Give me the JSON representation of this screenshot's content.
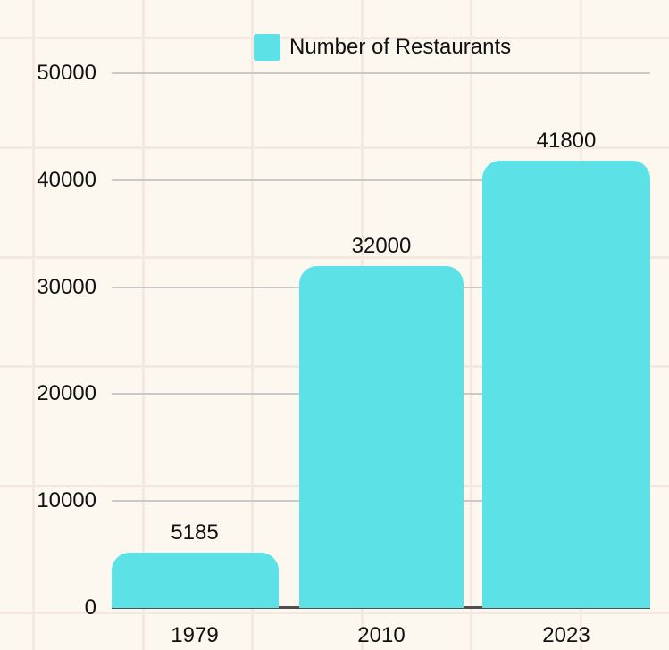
{
  "chart_data": {
    "type": "bar",
    "legend": [
      "Number of Restaurants"
    ],
    "legend_position": "top",
    "categories": [
      "1979",
      "2010",
      "2023"
    ],
    "values": [
      5185,
      32000,
      41800
    ],
    "value_labels": [
      "5185",
      "32000",
      "41800"
    ],
    "xlabel": "",
    "ylabel": "",
    "ylim": [
      0,
      50000
    ],
    "yticks": [
      {
        "label": "50000",
        "value": 50000
      },
      {
        "label": "40000",
        "value": 40000
      },
      {
        "label": "30000",
        "value": 30000
      },
      {
        "label": "20000",
        "value": 20000
      },
      {
        "label": "10000",
        "value": 10000
      },
      {
        "label": "0",
        "value": 0
      }
    ],
    "grid": "horizontal",
    "colors": {
      "bar": "#5CE1E6",
      "background": "#FDF8EF",
      "background_grid": "#F5E8E1",
      "gridline": "#C9C9C9",
      "axis_line": "#4F4F4F",
      "text": "#111111"
    }
  }
}
